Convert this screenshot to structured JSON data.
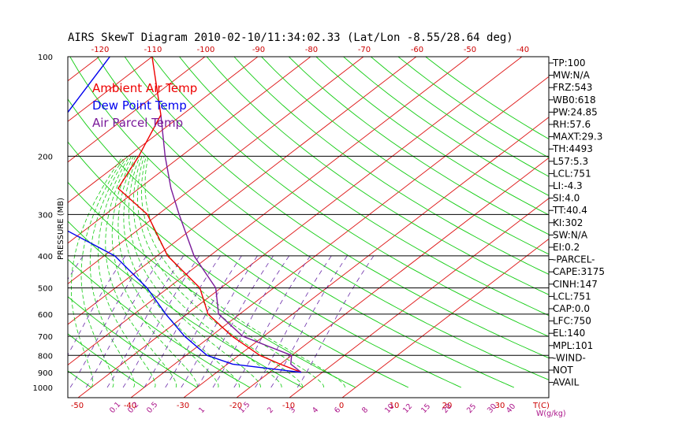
{
  "chart_data": {
    "type": "line",
    "title": "AIRS SkewT Diagram 2010-02-10/11:34:02.33 (Lat/Lon -8.55/28.64 deg)",
    "ylabel": "PRESSURE (MB)",
    "x_unit_label": "T(C)",
    "mix_unit_label": "W(g/kg)",
    "pressure_ticks": [
      100,
      200,
      300,
      400,
      500,
      600,
      700,
      800,
      900,
      1000
    ],
    "pressure_grid": [
      200,
      300,
      400,
      500,
      600,
      700,
      800,
      900
    ],
    "pressure_range": [
      100,
      1000
    ],
    "bottom_temp_ticks": [
      -50,
      -40,
      -30,
      -20,
      -10,
      0,
      10,
      20,
      30
    ],
    "top_temp_ticks": [
      -120,
      -110,
      -100,
      -90,
      -80,
      -70,
      -60,
      -50,
      -40
    ],
    "mixing_ratio_labels": [
      "0.1",
      "0.2",
      "0.5",
      "1",
      "1.5",
      "2",
      "3",
      "4",
      "6",
      "8",
      "10",
      "12",
      "15",
      "20",
      "25",
      "30",
      "40"
    ],
    "colors": {
      "ambient": "#ee0000",
      "dewpoint": "#0000ee",
      "parcel": "#7a1a9a",
      "isotherm": "#dd1111",
      "dry_adiabat": "#11cc11",
      "moist_adiabat": "#11cc11",
      "mixing_ratio": "#6a2aa8",
      "axis": "#000000",
      "mix_label": "#aa1188"
    },
    "series": [
      {
        "name": "Ambient Air Temp",
        "points": [
          [
            100,
            -80
          ],
          [
            150,
            -64
          ],
          [
            200,
            -58
          ],
          [
            250,
            -54
          ],
          [
            300,
            -42
          ],
          [
            400,
            -28
          ],
          [
            500,
            -14
          ],
          [
            600,
            -6
          ],
          [
            700,
            4
          ],
          [
            800,
            14
          ],
          [
            850,
            20
          ],
          [
            900,
            26
          ]
        ]
      },
      {
        "name": "Dew Point Temp",
        "points": [
          [
            100,
            -88
          ],
          [
            150,
            -82
          ],
          [
            200,
            -82
          ],
          [
            250,
            -78
          ],
          [
            300,
            -63
          ],
          [
            400,
            -38
          ],
          [
            500,
            -24
          ],
          [
            600,
            -14
          ],
          [
            700,
            -5
          ],
          [
            800,
            4
          ],
          [
            850,
            11
          ],
          [
            900,
            26
          ]
        ]
      },
      {
        "name": "Air Parcel Temp",
        "points": [
          [
            150,
            -64
          ],
          [
            200,
            -53
          ],
          [
            250,
            -44
          ],
          [
            300,
            -36
          ],
          [
            400,
            -23
          ],
          [
            500,
            -11
          ],
          [
            600,
            -4
          ],
          [
            700,
            6
          ],
          [
            800,
            20
          ],
          [
            850,
            22
          ],
          [
            900,
            26
          ]
        ]
      }
    ],
    "indices": [
      "TP:100",
      "MW:N/A",
      "FRZ:543",
      "WB0:618",
      "PW:24.85",
      "RH:57.6",
      "MAXT:29.3",
      "TH:4493",
      "L57:5.3",
      "LCL:751",
      "LI:-4.3",
      "SI:4.0",
      "TT:40.4",
      "KI:302",
      "SW:N/A",
      "EI:0.2",
      "-PARCEL-",
      "CAPE:3175",
      "CINH:147",
      "LCL:751",
      "CAP:0.0",
      "LFC:750",
      "EL:140",
      "MPL:101",
      "-WIND-",
      "NOT",
      "AVAIL"
    ],
    "legend_placement": "top-left",
    "grid": true
  }
}
